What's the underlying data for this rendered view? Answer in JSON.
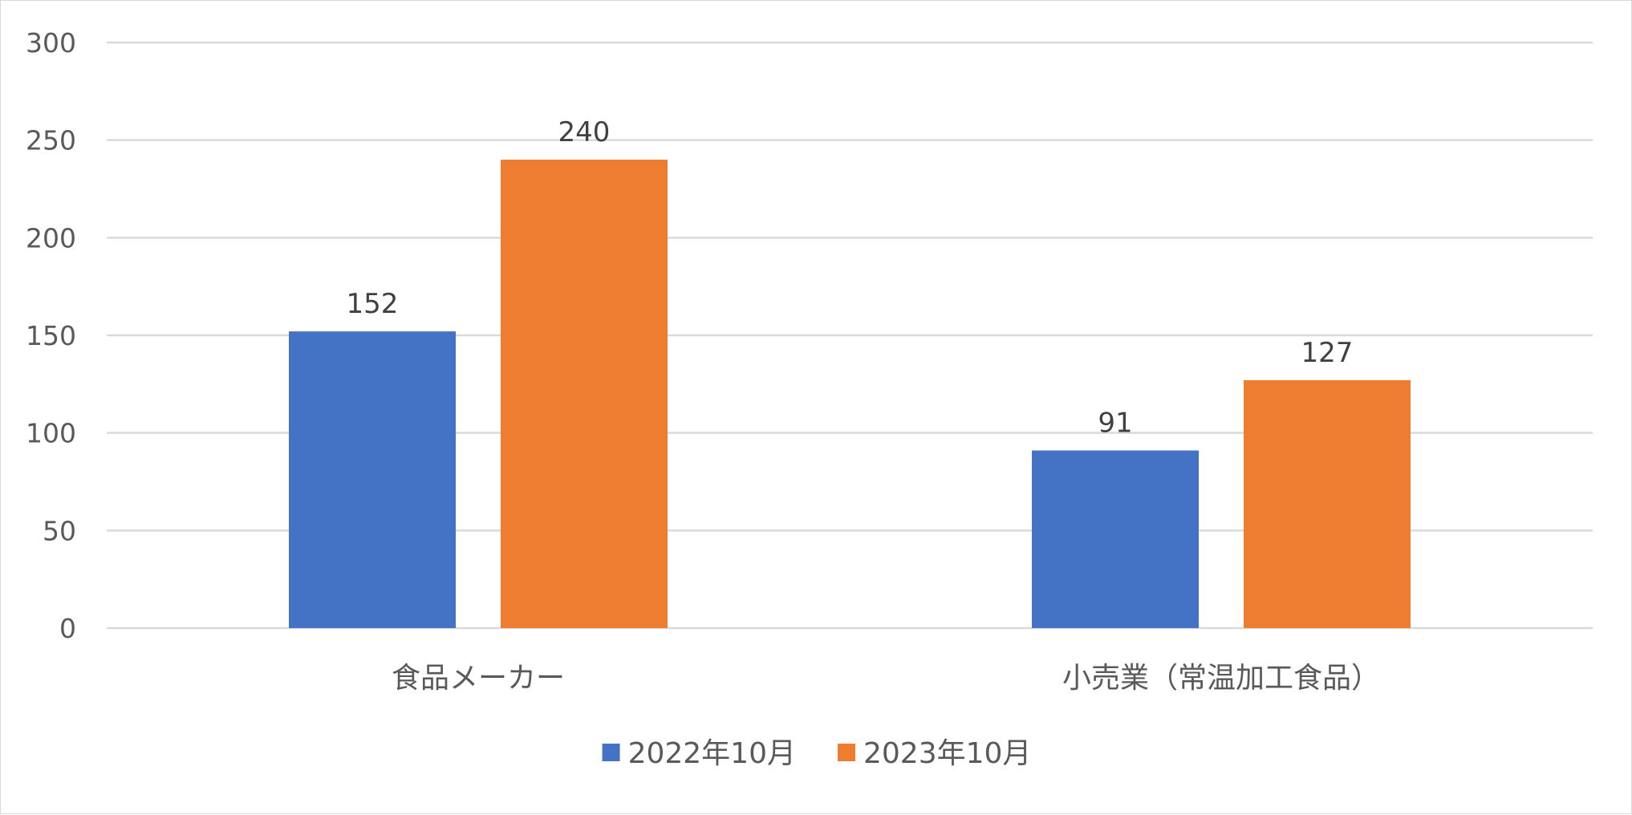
{
  "chart_data": {
    "type": "bar",
    "title": "",
    "xlabel": "",
    "ylabel": "",
    "categories": [
      "食品メーカー",
      "小売業（常温加工食品）"
    ],
    "series": [
      {
        "name": "2022年10月",
        "color": "#4472C4",
        "values": [
          152,
          91
        ]
      },
      {
        "name": "2023年10月",
        "color": "#ED7D31",
        "values": [
          240,
          127
        ]
      }
    ],
    "ylim": [
      0,
      300
    ],
    "yticks": [
      0,
      50,
      100,
      150,
      200,
      250,
      300
    ],
    "grid": true,
    "data_labels": true,
    "legend_position": "bottom"
  }
}
